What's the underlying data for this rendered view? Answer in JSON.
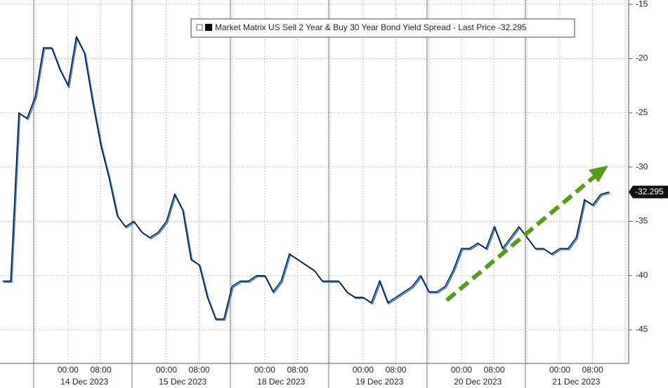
{
  "chart_data": {
    "type": "line",
    "series": [
      {
        "name": "Market Matrix US Sell 2 Year & Buy 30 Year Bond Yield Spread - Last Price",
        "color": "#000000",
        "shadow_color": "#3a7bd5",
        "values": [
          -40.5,
          -40.5,
          -25,
          -25.5,
          -23.5,
          -19,
          -19,
          -21,
          -22.5,
          -18,
          -19.5,
          -24,
          -28,
          -31,
          -34.5,
          -35.5,
          -35,
          -36,
          -36.5,
          -36,
          -35,
          -32.5,
          -34,
          -38.5,
          -39,
          -42,
          -44,
          -44,
          -41,
          -40.5,
          -40.5,
          -40,
          -40,
          -41.5,
          -40.5,
          -38,
          -38.5,
          -39,
          -39.5,
          -40.5,
          -40.5,
          -40.5,
          -41.5,
          -42,
          -42,
          -42.5,
          -40.5,
          -42.5,
          -42,
          -41.5,
          -41,
          -40,
          -41.5,
          -41.5,
          -41,
          -39.5,
          -37.5,
          -37.5,
          -37,
          -37.5,
          -35.5,
          -37.5,
          -36.5,
          -35.5,
          -36.5,
          -37.5,
          -37.5,
          -38,
          -37.5,
          -37.5,
          -36.5,
          -33,
          -33.5,
          -32.5,
          -32.295
        ]
      }
    ],
    "last_value": -32.295,
    "xlim": [
      -0.3,
      76.4
    ],
    "xticks": [
      {
        "value": 8,
        "label": "00:00"
      },
      {
        "value": 12,
        "label": "08:00"
      },
      {
        "value": 20,
        "label": "00:00"
      },
      {
        "value": 24,
        "label": "08:00"
      },
      {
        "value": 32,
        "label": "00:00"
      },
      {
        "value": 36,
        "label": "08:00"
      },
      {
        "value": 44,
        "label": "00:00"
      },
      {
        "value": 48,
        "label": "08:00"
      },
      {
        "value": 56,
        "label": "00:00"
      },
      {
        "value": 60,
        "label": "08:00"
      },
      {
        "value": 68,
        "label": "00:00"
      },
      {
        "value": 72,
        "label": "08:00"
      }
    ],
    "xminorticks": [
      4,
      16,
      28,
      40,
      52,
      64,
      76
    ],
    "day_labels": [
      {
        "value": 10,
        "label": "14 Dec 2023"
      },
      {
        "value": 22,
        "label": "15 Dec 2023"
      },
      {
        "value": 34,
        "label": "18 Dec 2023"
      },
      {
        "value": 46,
        "label": "19 Dec 2023"
      },
      {
        "value": 58,
        "label": "20 Dec 2023"
      },
      {
        "value": 70,
        "label": "21 Dec 2023"
      }
    ],
    "ylim": [
      -48.1,
      -14.6
    ],
    "yticks": [
      -15,
      -20,
      -25,
      -30,
      -35,
      -40,
      -45
    ],
    "grid": true
  }
}
